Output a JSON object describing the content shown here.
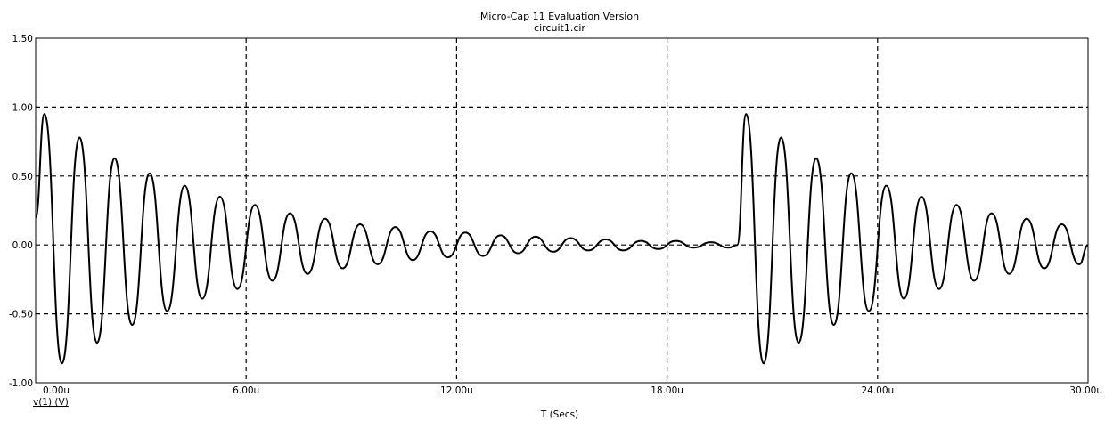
{
  "header": {
    "title": "Micro-Cap 11 Evaluation Version",
    "subtitle": "circuit1.cir"
  },
  "chart_data": {
    "type": "line",
    "title": "Micro-Cap 11 Evaluation Version",
    "subtitle": "circuit1.cir",
    "xlabel": "T (Secs)",
    "ylabel": "",
    "xlim": [
      0,
      30
    ],
    "ylim": [
      -1.0,
      1.5
    ],
    "x_unit": "u",
    "x_ticks": [
      0,
      6,
      12,
      18,
      24,
      30
    ],
    "y_ticks": [
      -1.0,
      -0.5,
      0.0,
      0.5,
      1.0,
      1.5
    ],
    "x_tick_labels": [
      "0.00u",
      "6.00u",
      "12.00u",
      "18.00u",
      "24.00u",
      "30.00u"
    ],
    "y_tick_labels": [
      "-1.00",
      "-0.50",
      "0.00",
      "0.50",
      "1.00",
      "1.50"
    ],
    "grid": true,
    "series": [
      {
        "name": "v(1) (V)",
        "color": "#000000",
        "x": [
          0.0,
          0.25,
          0.75,
          1.25,
          1.75,
          2.25,
          2.75,
          3.25,
          3.75,
          4.25,
          4.75,
          5.25,
          5.75,
          6.25,
          6.75,
          7.25,
          7.75,
          8.25,
          8.75,
          9.25,
          9.75,
          10.25,
          10.75,
          11.25,
          11.75,
          12.25,
          12.75,
          13.25,
          13.75,
          14.25,
          14.75,
          15.25,
          15.75,
          16.25,
          16.75,
          17.25,
          17.75,
          18.25,
          18.75,
          19.25,
          19.75,
          20.0,
          20.25,
          20.75,
          21.25,
          21.75,
          22.25,
          22.75,
          23.25,
          23.75,
          24.25,
          24.75,
          25.25,
          25.75,
          26.25,
          26.75,
          27.25,
          27.75,
          28.25,
          28.75,
          29.25,
          29.75,
          30.0
        ],
        "values": [
          0.2,
          0.95,
          -0.86,
          0.78,
          -0.71,
          0.63,
          -0.58,
          0.52,
          -0.48,
          0.43,
          -0.39,
          0.35,
          -0.32,
          0.29,
          -0.26,
          0.23,
          -0.21,
          0.19,
          -0.17,
          0.15,
          -0.14,
          0.13,
          -0.11,
          0.1,
          -0.09,
          0.09,
          -0.08,
          0.07,
          -0.06,
          0.06,
          -0.05,
          0.05,
          -0.04,
          0.04,
          -0.04,
          0.03,
          -0.03,
          0.03,
          -0.02,
          0.02,
          -0.02,
          0.0,
          0.95,
          -0.86,
          0.78,
          -0.71,
          0.63,
          -0.58,
          0.52,
          -0.48,
          0.43,
          -0.39,
          0.35,
          -0.32,
          0.29,
          -0.26,
          0.23,
          -0.21,
          0.19,
          -0.17,
          0.15,
          -0.14,
          0.0
        ]
      }
    ]
  }
}
